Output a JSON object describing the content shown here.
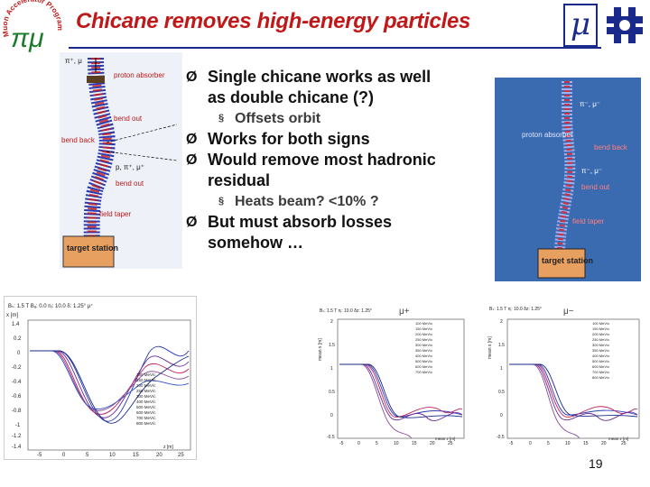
{
  "slide": {
    "title": "Chicane removes high-energy particles",
    "page_number": "19"
  },
  "logo": {
    "ring_text": "Muon Accelerator Program",
    "symbol": "πμ",
    "mu": "μ"
  },
  "bullets": [
    {
      "level": 1,
      "marker": "Ø",
      "text": "Single chicane works as well as double chicane (?)"
    },
    {
      "level": 2,
      "marker": "§",
      "text": "Offsets orbit"
    },
    {
      "level": 1,
      "marker": "Ø",
      "text": "Works for both signs"
    },
    {
      "level": 1,
      "marker": "Ø",
      "text": "Would remove most hadronic residual"
    },
    {
      "level": 2,
      "marker": "§",
      "text": "Heats beam? <10% ?"
    },
    {
      "level": 1,
      "marker": "Ø",
      "text": "But must absorb losses somehow …"
    }
  ],
  "diagram_left": {
    "labels": {
      "beam": "π⁺, μ",
      "proton_absorber": "proton absorber",
      "bend_out_top": "bend out",
      "bend_back": "bend back",
      "particles": "p, π⁺, μ⁺",
      "bend_out_bottom": "bend out",
      "field_taper": "field taper",
      "target_station": "target station"
    },
    "colors": {
      "coil_red": "#c82020",
      "coil_blue": "#2040c0",
      "label_red": "#c01818",
      "target_fill": "#e8a060",
      "bg": "#f0f4fa"
    }
  },
  "diagram_right": {
    "labels": {
      "beam": "π⁻, μ⁻",
      "proton_absorber": "proton absorber",
      "bend_back": "bend back",
      "particles": "π⁻, μ⁻",
      "bend_out": "bend out",
      "field_taper": "field taper",
      "target_station": "target station"
    },
    "colors": {
      "bg": "#3a6ab0",
      "coil_red": "#d03040",
      "coil_blue": "#a0b0f0"
    }
  },
  "plots": [
    {
      "header": "Bₛ: 1.5 T   Bₐ: 0.0   nⱼ: 10.0   δ: 1.25° μ⁺",
      "y_label": "x [m]",
      "x_label": "z [m]",
      "y_ticks": [
        "1.4",
        "0.2",
        "0",
        "-0.2",
        "-0.4",
        "-0.6",
        "-0.8",
        "-1",
        "-1.2",
        "-1.4"
      ],
      "x_ticks": [
        "-5",
        "0",
        "5",
        "10",
        "15",
        "20",
        "25"
      ],
      "legend": [
        "100 MeV/c",
        "150 MeV/c",
        "200 MeV/c",
        "250 MeV/c",
        "300 MeV/c",
        "400 MeV/c",
        "500 MeV/c",
        "600 MeV/c",
        "700 MeV/c",
        "800 MeV/c"
      ]
    },
    {
      "header": "Bₛ: 1.5 T   nⱼ: 10.0   δz: 1.25°",
      "sign": "μ+",
      "y_label": "mean x [m]",
      "x_label": "mean z [m]",
      "y_ticks": [
        "2",
        "1.5",
        "1",
        "0.5",
        "0",
        "-0.5"
      ],
      "x_ticks": [
        "-5",
        "0",
        "5",
        "10",
        "15",
        "20",
        "25"
      ],
      "legend": [
        "100 MeV/c",
        "150 MeV/c",
        "200 MeV/c",
        "250 MeV/c",
        "300 MeV/c",
        "350 MeV/c",
        "400 MeV/c",
        "500 MeV/c",
        "600 MeV/c",
        "700 MeV/c"
      ]
    },
    {
      "header": "Bₛ: 1.5 T   nⱼ: 10.0   δz: 1.25°",
      "sign": "μ−",
      "y_label": "mean x [m]",
      "x_label": "mean z [m]",
      "y_ticks": [
        "2",
        "1.5",
        "1",
        "0.5",
        "0",
        "-0.5"
      ],
      "x_ticks": [
        "-5",
        "0",
        "5",
        "10",
        "15",
        "20",
        "25"
      ],
      "legend": [
        "100 MeV/c",
        "150 MeV/c",
        "200 MeV/c",
        "250 MeV/c",
        "300 MeV/c",
        "350 MeV/c",
        "400 MeV/c",
        "500 MeV/c",
        "600 MeV/c",
        "700 MeV/c",
        "800 MeV/c"
      ]
    }
  ]
}
